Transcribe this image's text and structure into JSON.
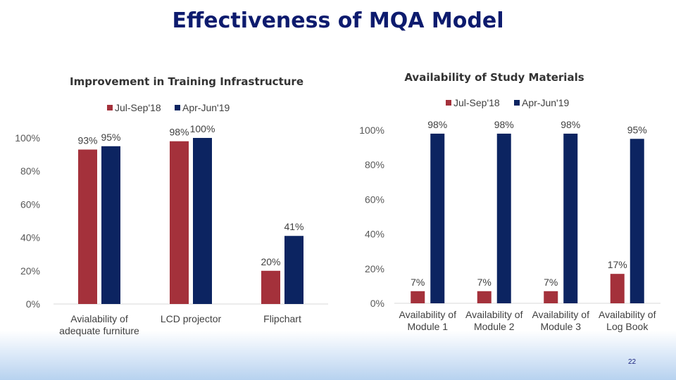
{
  "slide": {
    "title": "Effectiveness of MQA Model",
    "page_number": "22"
  },
  "colors": {
    "series1": "#a4313b",
    "series2": "#0c2461",
    "title": "#0d1b6e"
  },
  "chart_data": [
    {
      "type": "bar",
      "title": "Improvement in Training Infrastructure",
      "categories": [
        [
          "Avialability of",
          "adequate furniture"
        ],
        [
          "LCD projector"
        ],
        [
          "Flipchart"
        ]
      ],
      "series": [
        {
          "name": "Jul-Sep'18",
          "values": [
            93,
            98,
            20
          ],
          "labels": [
            "93%",
            "98%",
            "20%"
          ]
        },
        {
          "name": "Apr-Jun'19",
          "values": [
            95,
            100,
            41
          ],
          "labels": [
            "95%",
            "100%",
            "41%"
          ]
        }
      ],
      "ylim": [
        0,
        100
      ],
      "yticks": [
        "0%",
        "20%",
        "40%",
        "60%",
        "80%",
        "100%"
      ],
      "legend": "top",
      "grid": false
    },
    {
      "type": "bar",
      "title": "Availability of Study Materials",
      "categories": [
        [
          "Availability of",
          "Module 1"
        ],
        [
          "Availability of",
          "Module 2"
        ],
        [
          "Availability of",
          "Module 3"
        ],
        [
          "Availability of",
          "Log Book"
        ]
      ],
      "series": [
        {
          "name": "Jul-Sep'18",
          "values": [
            7,
            7,
            7,
            17
          ],
          "labels": [
            "7%",
            "7%",
            "7%",
            "17%"
          ]
        },
        {
          "name": "Apr-Jun'19",
          "values": [
            98,
            98,
            98,
            95
          ],
          "labels": [
            "98%",
            "98%",
            "98%",
            "95%"
          ]
        }
      ],
      "ylim": [
        0,
        100
      ],
      "yticks": [
        "0%",
        "20%",
        "40%",
        "60%",
        "80%",
        "100%"
      ],
      "legend": "top",
      "grid": false
    }
  ]
}
